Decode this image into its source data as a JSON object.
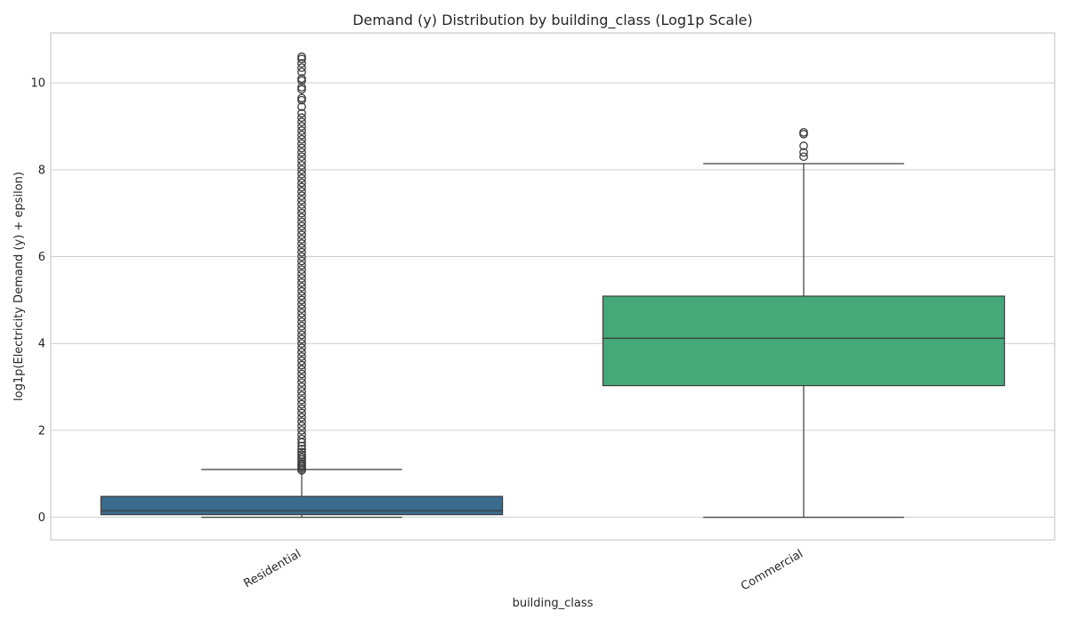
{
  "chart_data": {
    "type": "box",
    "title": "Demand (y) Distribution by building_class (Log1p Scale)",
    "xlabel": "building_class",
    "ylabel": "log1p(Electricity Demand (y) + epsilon)",
    "ylim": [
      -0.52,
      11.15
    ],
    "yticks": [
      0,
      2,
      4,
      6,
      8,
      10
    ],
    "ytick_labels": [
      "0",
      "2",
      "4",
      "6",
      "8",
      "10"
    ],
    "grid": "horizontal",
    "categories": [
      "Residential",
      "Commercial"
    ],
    "boxes": [
      {
        "category": "Residential",
        "color": "#3a6b8c",
        "whisker_low": 0.0,
        "q1": 0.06,
        "median": 0.15,
        "q3": 0.48,
        "whisker_high": 1.1,
        "outliers": [
          1.08,
          1.12,
          1.16,
          1.2,
          1.24,
          1.28,
          1.33,
          1.38,
          1.44,
          1.5,
          1.57,
          1.64,
          1.72,
          1.8,
          1.9,
          2.0,
          2.1,
          2.2,
          2.3,
          2.4,
          2.5,
          2.6,
          2.7,
          2.8,
          2.9,
          3.0,
          3.1,
          3.2,
          3.3,
          3.4,
          3.5,
          3.6,
          3.7,
          3.8,
          3.9,
          4.0,
          4.1,
          4.2,
          4.3,
          4.4,
          4.5,
          4.6,
          4.7,
          4.8,
          4.9,
          5.0,
          5.1,
          5.2,
          5.3,
          5.4,
          5.5,
          5.6,
          5.7,
          5.8,
          5.9,
          6.0,
          6.1,
          6.2,
          6.3,
          6.4,
          6.5,
          6.6,
          6.7,
          6.8,
          6.9,
          7.0,
          7.1,
          7.2,
          7.3,
          7.4,
          7.5,
          7.6,
          7.7,
          7.8,
          7.9,
          8.0,
          8.1,
          8.2,
          8.3,
          8.4,
          8.5,
          8.6,
          8.7,
          8.8,
          8.9,
          9.0,
          9.1,
          9.2,
          9.3,
          9.45,
          9.6,
          9.65,
          9.85,
          9.9,
          10.05,
          10.1,
          10.25,
          10.35,
          10.45,
          10.55,
          10.6
        ]
      },
      {
        "category": "Commercial",
        "color": "#44a878",
        "whisker_low": 0.0,
        "q1": 3.03,
        "median": 4.12,
        "q3": 5.09,
        "whisker_high": 8.14,
        "outliers": [
          8.3,
          8.4,
          8.55,
          8.82,
          8.86
        ]
      }
    ]
  }
}
